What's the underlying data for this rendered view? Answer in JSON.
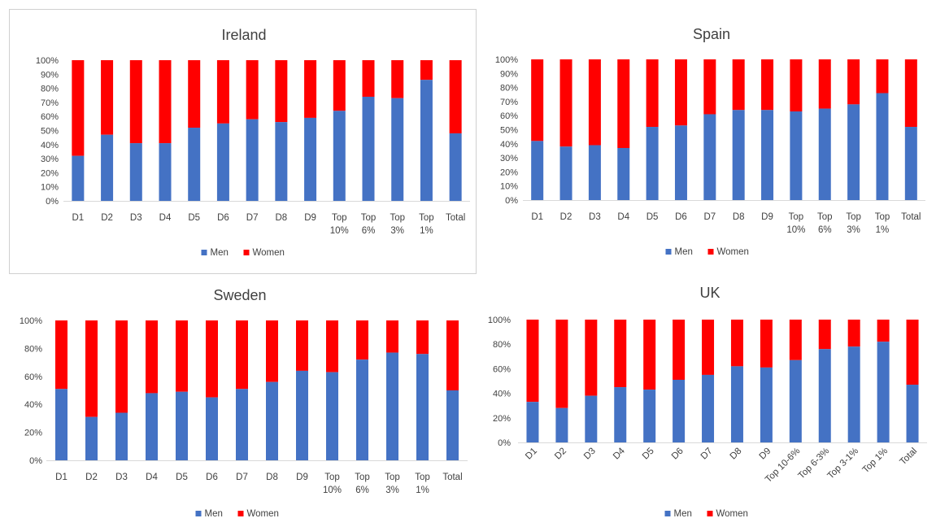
{
  "chart_data": [
    {
      "type": "bar",
      "stacked": "percent",
      "title": "Ireland",
      "categories": [
        [
          "D1"
        ],
        [
          "D2"
        ],
        [
          "D3"
        ],
        [
          "D4"
        ],
        [
          "D5"
        ],
        [
          "D6"
        ],
        [
          "D7"
        ],
        [
          "D8"
        ],
        [
          "D9"
        ],
        [
          "Top",
          "10%"
        ],
        [
          "Top",
          "6%"
        ],
        [
          "Top",
          "3%"
        ],
        [
          "Top",
          "1%"
        ],
        [
          "Total"
        ]
      ],
      "series": [
        {
          "name": "Men",
          "values": [
            32,
            47,
            41,
            41,
            52,
            55,
            58,
            56,
            59,
            64,
            74,
            73,
            86,
            48
          ]
        },
        {
          "name": "Women",
          "values": [
            68,
            53,
            59,
            59,
            48,
            45,
            42,
            44,
            41,
            36,
            26,
            27,
            14,
            52
          ]
        }
      ],
      "yticks": [
        "0%",
        "10%",
        "20%",
        "30%",
        "40%",
        "50%",
        "60%",
        "70%",
        "80%",
        "90%",
        "100%"
      ],
      "ylim": [
        0,
        100
      ],
      "legend": "bottom",
      "colors": {
        "men": "#4472C4",
        "women": "#FF0000"
      }
    },
    {
      "type": "bar",
      "stacked": "percent",
      "title": "Spain",
      "categories": [
        [
          "D1"
        ],
        [
          "D2"
        ],
        [
          "D3"
        ],
        [
          "D4"
        ],
        [
          "D5"
        ],
        [
          "D6"
        ],
        [
          "D7"
        ],
        [
          "D8"
        ],
        [
          "D9"
        ],
        [
          "Top",
          "10%"
        ],
        [
          "Top",
          "6%"
        ],
        [
          "Top",
          "3%"
        ],
        [
          "Top",
          "1%"
        ],
        [
          "Total"
        ]
      ],
      "series": [
        {
          "name": "Men",
          "values": [
            42,
            38,
            39,
            37,
            52,
            53,
            61,
            64,
            64,
            63,
            65,
            68,
            76,
            52
          ]
        },
        {
          "name": "Women",
          "values": [
            58,
            62,
            61,
            63,
            48,
            47,
            39,
            36,
            36,
            37,
            35,
            32,
            24,
            48
          ]
        }
      ],
      "yticks": [
        "0%",
        "10%",
        "20%",
        "30%",
        "40%",
        "50%",
        "60%",
        "70%",
        "80%",
        "90%",
        "100%"
      ],
      "ylim": [
        0,
        100
      ],
      "legend": "bottom",
      "colors": {
        "men": "#4472C4",
        "women": "#FF0000"
      }
    },
    {
      "type": "bar",
      "stacked": "percent",
      "title": "Sweden",
      "categories": [
        [
          "D1"
        ],
        [
          "D2"
        ],
        [
          "D3"
        ],
        [
          "D4"
        ],
        [
          "D5"
        ],
        [
          "D6"
        ],
        [
          "D7"
        ],
        [
          "D8"
        ],
        [
          "D9"
        ],
        [
          "Top",
          "10%"
        ],
        [
          "Top",
          "6%"
        ],
        [
          "Top",
          "3%"
        ],
        [
          "Top",
          "1%"
        ],
        [
          "Total"
        ]
      ],
      "series": [
        {
          "name": "Men",
          "values": [
            51,
            31,
            34,
            48,
            49,
            45,
            51,
            56,
            64,
            63,
            72,
            77,
            76,
            50
          ]
        },
        {
          "name": "Women",
          "values": [
            49,
            69,
            66,
            52,
            51,
            55,
            49,
            44,
            36,
            37,
            28,
            23,
            24,
            50
          ]
        }
      ],
      "yticks": [
        "0%",
        "20%",
        "40%",
        "60%",
        "80%",
        "100%"
      ],
      "ylim": [
        0,
        100
      ],
      "legend": "bottom",
      "colors": {
        "men": "#4472C4",
        "women": "#FF0000"
      }
    },
    {
      "type": "bar",
      "stacked": "percent",
      "title": "UK",
      "categories": [
        [
          "D1"
        ],
        [
          "D2"
        ],
        [
          "D3"
        ],
        [
          "D4"
        ],
        [
          "D5"
        ],
        [
          "D6"
        ],
        [
          "D7"
        ],
        [
          "D8"
        ],
        [
          "D9"
        ],
        [
          "Top 10-6%"
        ],
        [
          "Top 6-3%"
        ],
        [
          "Top 3-1%"
        ],
        [
          "Top 1%"
        ],
        [
          "Total"
        ]
      ],
      "rotated_labels": true,
      "series": [
        {
          "name": "Men",
          "values": [
            33,
            28,
            38,
            45,
            43,
            51,
            55,
            62,
            61,
            67,
            76,
            78,
            82,
            47
          ]
        },
        {
          "name": "Women",
          "values": [
            67,
            72,
            62,
            55,
            57,
            49,
            45,
            38,
            39,
            33,
            24,
            22,
            18,
            53
          ]
        }
      ],
      "yticks": [
        "0%",
        "20%",
        "40%",
        "60%",
        "80%",
        "100%"
      ],
      "ylim": [
        0,
        100
      ],
      "legend": "bottom",
      "colors": {
        "men": "#4472C4",
        "women": "#FF0000"
      }
    }
  ]
}
